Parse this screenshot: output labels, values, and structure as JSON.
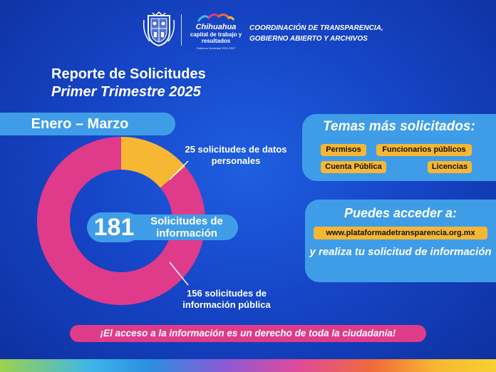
{
  "header": {
    "brand_city": "Chihuahua",
    "brand_slogan": "capital de trabajo y resultados",
    "brand_period": "Gobierno Municipal 2024-2027",
    "office_line1": "COORDINACIÓN DE TRANSPARENCIA,",
    "office_line2": "GOBIERNO ABIERTO Y ARCHIVOS"
  },
  "title": "Reporte de Solicitudes",
  "subtitle": "Primer Trimestre 2025",
  "period": "Enero – Marzo",
  "chart_data": {
    "type": "pie",
    "title": "",
    "total": 181,
    "total_label": "Solicitudes de información",
    "slices": [
      {
        "label": "25 solicitudes de datos personales",
        "value": 25,
        "color": "#f7b732"
      },
      {
        "label": "156 solicitudes de información pública",
        "value": 156,
        "color": "#e03a8a"
      }
    ]
  },
  "callouts": {
    "personal": "25 solicitudes de datos personales",
    "public": "156 solicitudes de información pública"
  },
  "topics": {
    "title": "Temas más solicitados:",
    "tags": [
      "Permisos",
      "Funcionarios públicos",
      "Cuenta Pública",
      "Licencias"
    ]
  },
  "access": {
    "title": "Puedes acceder a:",
    "url": "www.plataformadetransparencia.org.mx",
    "cta": "y realiza tu solicitud de información"
  },
  "footer": {
    "banner": "¡El acceso a la información es un derecho de toda la ciudadanía!"
  },
  "colors": {
    "background": "#1646c8",
    "panel": "#3f9de8",
    "accent_yellow": "#f7b732",
    "accent_pink": "#e03a8a"
  }
}
